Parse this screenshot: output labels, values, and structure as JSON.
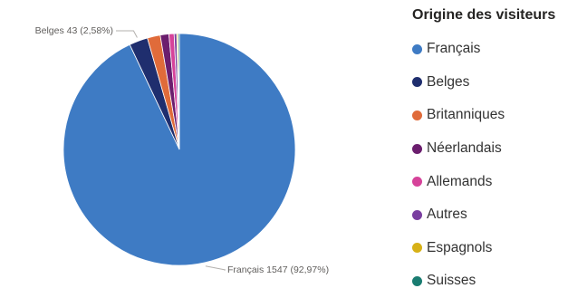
{
  "chart_data": {
    "type": "pie",
    "title": "Origine des visiteurs",
    "categories": [
      "Français",
      "Belges",
      "Britanniques",
      "Néerlandais",
      "Allemands",
      "Autres",
      "Espagnols",
      "Suisses"
    ],
    "values": [
      1547,
      43,
      30,
      20,
      12,
      6,
      3,
      3
    ],
    "colors": [
      "#3e7bc4",
      "#1f2e6e",
      "#e06b3a",
      "#6b1e6e",
      "#d6439a",
      "#7a3fa0",
      "#d7b117",
      "#1a7c71"
    ],
    "data_labels": [
      {
        "category": "Belges",
        "text": "Belges 43 (2,58%)"
      },
      {
        "category": "Français",
        "text": "Français 1547 (92,97%)"
      }
    ],
    "legend_position": "right"
  }
}
